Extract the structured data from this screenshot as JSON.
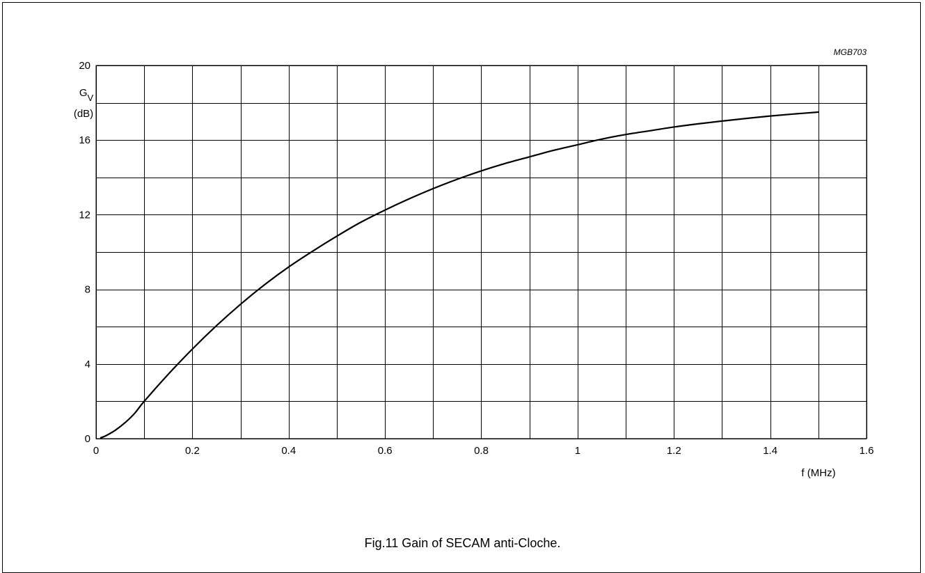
{
  "figure_id": "MGB703",
  "caption": "Fig.11  Gain of SECAM anti-Cloche.",
  "chart_data": {
    "type": "line",
    "title": "",
    "xlabel": "f (MHz)",
    "ylabel_main": "G",
    "ylabel_sub": "V",
    "ylabel_unit": "(dB)",
    "xlim": [
      0,
      1.6
    ],
    "ylim": [
      0,
      20
    ],
    "x_ticks": [
      0,
      0.2,
      0.4,
      0.6,
      0.8,
      1,
      1.2,
      1.4,
      1.6
    ],
    "x_tick_labels": [
      "0",
      "0.2",
      "0.4",
      "0.6",
      "0.8",
      "1",
      "1.2",
      "1.4",
      "1.6"
    ],
    "y_ticks": [
      0,
      4,
      8,
      12,
      16,
      20
    ],
    "y_tick_labels": [
      "0",
      "4",
      "8",
      "12",
      "16",
      "20"
    ],
    "grid": true,
    "x_grid_step": 0.1,
    "y_grid_step": 2,
    "series": [
      {
        "x": [
          0.01,
          0.02,
          0.04,
          0.06,
          0.08,
          0.1,
          0.15,
          0.2,
          0.25,
          0.3,
          0.35,
          0.4,
          0.45,
          0.5,
          0.55,
          0.6,
          0.65,
          0.7,
          0.75,
          0.8,
          0.85,
          0.9,
          0.95,
          1.0,
          1.05,
          1.1,
          1.15,
          1.2,
          1.25,
          1.3,
          1.35,
          1.4,
          1.45,
          1.5
        ],
        "values": [
          0.05,
          0.15,
          0.45,
          0.85,
          1.35,
          2.0,
          3.45,
          4.8,
          6.05,
          7.2,
          8.25,
          9.2,
          10.05,
          10.85,
          11.6,
          12.25,
          12.85,
          13.4,
          13.9,
          14.35,
          14.75,
          15.1,
          15.45,
          15.75,
          16.05,
          16.3,
          16.5,
          16.7,
          16.87,
          17.02,
          17.16,
          17.29,
          17.4,
          17.5
        ],
        "color": "#000000"
      }
    ]
  }
}
